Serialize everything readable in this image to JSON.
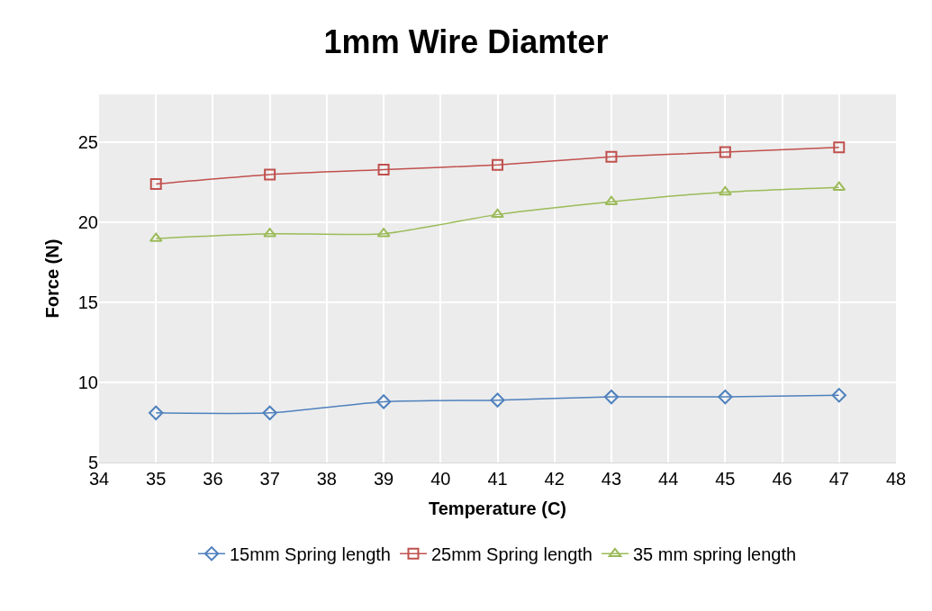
{
  "chart_data": {
    "type": "line",
    "title": "1mm Wire Diamter",
    "xlabel": "Temperature (C)",
    "ylabel": "Force (N)",
    "x": [
      35,
      37,
      39,
      41,
      43,
      45,
      47
    ],
    "series": [
      {
        "name": "15mm Spring length",
        "color": "#4f81bd",
        "marker": "diamond",
        "values": [
          8.1,
          8.1,
          8.8,
          8.9,
          9.1,
          9.1,
          9.2
        ]
      },
      {
        "name": "25mm Spring length",
        "color": "#c0504d",
        "marker": "square",
        "values": [
          22.4,
          23.0,
          23.3,
          23.6,
          24.1,
          24.4,
          24.7
        ]
      },
      {
        "name": "35 mm spring length",
        "color": "#9bbb59",
        "marker": "triangle",
        "values": [
          19.0,
          19.3,
          19.3,
          20.5,
          21.3,
          21.9,
          22.2
        ]
      }
    ],
    "xlim": [
      34,
      48
    ],
    "xticks": [
      34,
      35,
      36,
      37,
      38,
      39,
      40,
      41,
      42,
      43,
      44,
      45,
      46,
      47,
      48
    ],
    "ylim": [
      5,
      28
    ],
    "yticks": [
      5,
      10,
      15,
      20,
      25
    ],
    "grid": true,
    "legend": "bottom",
    "line_style": "solid"
  }
}
